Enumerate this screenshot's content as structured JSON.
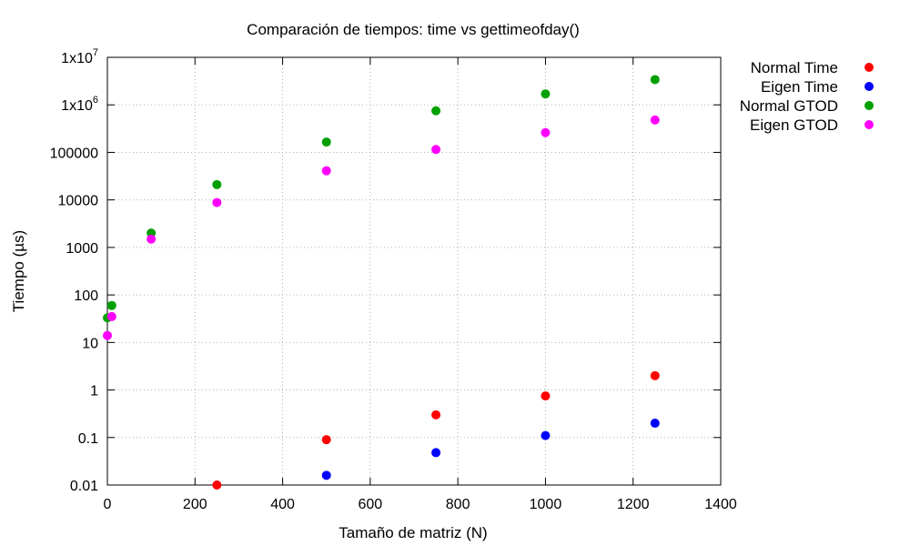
{
  "chart_data": {
    "type": "scatter",
    "title": "Comparación de tiempos: time vs gettimeofday()",
    "xlabel": "Tamaño de matriz (N)",
    "ylabel": "Tiempo (µs)",
    "x_scale": "linear",
    "y_scale": "log",
    "xlim": [
      0,
      1400
    ],
    "ylim": [
      0.01,
      10000000
    ],
    "x_ticks": [
      {
        "value": 0,
        "label": "0"
      },
      {
        "value": 200,
        "label": "200"
      },
      {
        "value": 400,
        "label": "400"
      },
      {
        "value": 600,
        "label": "600"
      },
      {
        "value": 800,
        "label": "800"
      },
      {
        "value": 1000,
        "label": "1000"
      },
      {
        "value": 1200,
        "label": "1200"
      },
      {
        "value": 1400,
        "label": "1400"
      }
    ],
    "y_ticks": [
      {
        "value": 0.01,
        "label": "0.01"
      },
      {
        "value": 0.1,
        "label": "0.1"
      },
      {
        "value": 1,
        "label": "1"
      },
      {
        "value": 10,
        "label": "10"
      },
      {
        "value": 100,
        "label": "100"
      },
      {
        "value": 1000,
        "label": "1000"
      },
      {
        "value": 10000,
        "label": "10000"
      },
      {
        "value": 100000,
        "label": "100000"
      },
      {
        "value": 1000000,
        "label": "1x10",
        "exp": "6"
      },
      {
        "value": 10000000,
        "label": "1x10",
        "exp": "7"
      }
    ],
    "grid": true,
    "legend_position": "outside-right",
    "series": [
      {
        "name": "Normal Time",
        "color": "#ff0000",
        "points": [
          {
            "x": 250,
            "y": 0.01
          },
          {
            "x": 500,
            "y": 0.09
          },
          {
            "x": 750,
            "y": 0.3
          },
          {
            "x": 1000,
            "y": 0.75
          },
          {
            "x": 1250,
            "y": 2.0
          }
        ]
      },
      {
        "name": "Eigen Time",
        "color": "#0000ff",
        "points": [
          {
            "x": 500,
            "y": 0.016
          },
          {
            "x": 750,
            "y": 0.048
          },
          {
            "x": 1000,
            "y": 0.11
          },
          {
            "x": 1250,
            "y": 0.2
          }
        ]
      },
      {
        "name": "Normal GTOD",
        "color": "#00a000",
        "points": [
          {
            "x": 0,
            "y": 33
          },
          {
            "x": 10,
            "y": 60
          },
          {
            "x": 100,
            "y": 2000
          },
          {
            "x": 250,
            "y": 21000
          },
          {
            "x": 500,
            "y": 165000
          },
          {
            "x": 750,
            "y": 750000
          },
          {
            "x": 1000,
            "y": 1700000
          },
          {
            "x": 1250,
            "y": 3400000
          }
        ]
      },
      {
        "name": "Eigen GTOD",
        "color": "#ff00ff",
        "points": [
          {
            "x": 0,
            "y": 14
          },
          {
            "x": 10,
            "y": 35
          },
          {
            "x": 100,
            "y": 1500
          },
          {
            "x": 250,
            "y": 8800
          },
          {
            "x": 500,
            "y": 41000
          },
          {
            "x": 750,
            "y": 115000
          },
          {
            "x": 1000,
            "y": 260000
          },
          {
            "x": 1250,
            "y": 480000
          }
        ]
      }
    ]
  }
}
